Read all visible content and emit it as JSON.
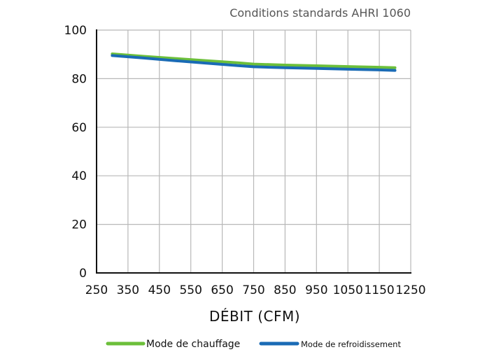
{
  "chart_data": {
    "type": "line",
    "subtitle": "Conditions standards AHRI 1060",
    "title": "",
    "xlabel": "DÉBIT (CFM)",
    "ylabel": "",
    "xlim": [
      250,
      1250
    ],
    "ylim": [
      0,
      100
    ],
    "x_ticks": [
      250,
      350,
      450,
      550,
      650,
      750,
      850,
      950,
      1050,
      1150,
      1250
    ],
    "y_ticks": [
      0,
      20,
      40,
      60,
      80,
      100
    ],
    "grid": true,
    "legend_position": "bottom",
    "series": [
      {
        "name": "Mode de chauffage",
        "color": "#6cbf3a",
        "x": [
          300,
          400,
          500,
          600,
          700,
          750,
          850,
          950,
          1050,
          1150,
          1200
        ],
        "y": [
          90.2,
          89.2,
          88.3,
          87.4,
          86.5,
          86.0,
          85.6,
          85.3,
          85.0,
          84.7,
          84.5
        ]
      },
      {
        "name": "Mode de refroidissement",
        "color": "#1a6bb5",
        "x": [
          300,
          400,
          500,
          600,
          700,
          750,
          850,
          950,
          1050,
          1150,
          1200
        ],
        "y": [
          89.5,
          88.5,
          87.4,
          86.4,
          85.4,
          84.9,
          84.5,
          84.2,
          83.9,
          83.6,
          83.4
        ]
      }
    ]
  }
}
